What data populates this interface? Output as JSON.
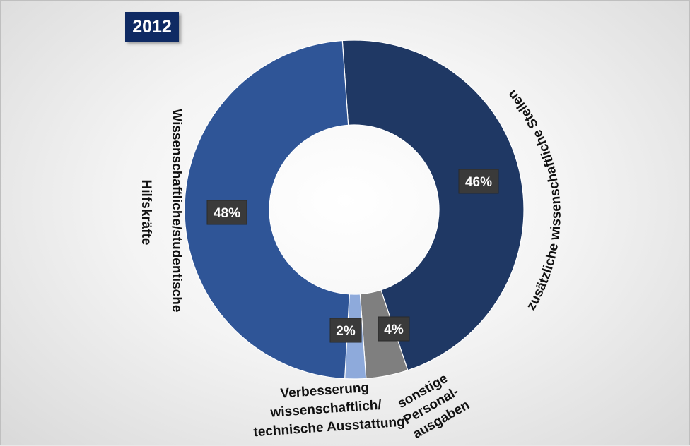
{
  "year_badge": "2012",
  "chart_data": {
    "type": "pie",
    "variant": "donut",
    "title": "2012",
    "slices": [
      {
        "label": "zusätzliche wissenschaftliche Stellen",
        "value": 46,
        "display": "46%",
        "color": "#1f3864"
      },
      {
        "label": "sonstige Personal-ausgaben",
        "value": 4,
        "display": "4%",
        "color": "#7f7f7f"
      },
      {
        "label": "Verbesserung wissenschaftlich/ technische Ausstattung",
        "value": 2,
        "display": "2%",
        "color": "#8eaadb"
      },
      {
        "label": "Wissenschaftliche/studentische Hilfskräfte",
        "value": 48,
        "display": "48%",
        "color": "#2f5597"
      }
    ],
    "labels": {
      "stellen": "zusätzliche wissenschaftliche Stellen",
      "hilfskraefte_line1": "Wissenschaftliche/studentische",
      "hilfskraefte_line2": "Hilfskräfte",
      "sonstige_line1": "sonstige",
      "sonstige_line2": "Personal-",
      "sonstige_line3": "ausgaben",
      "verbesserung_line1": "Verbesserung",
      "verbesserung_line2": "wissenschaftlich/",
      "verbesserung_line3": "technische Ausstattung"
    }
  }
}
